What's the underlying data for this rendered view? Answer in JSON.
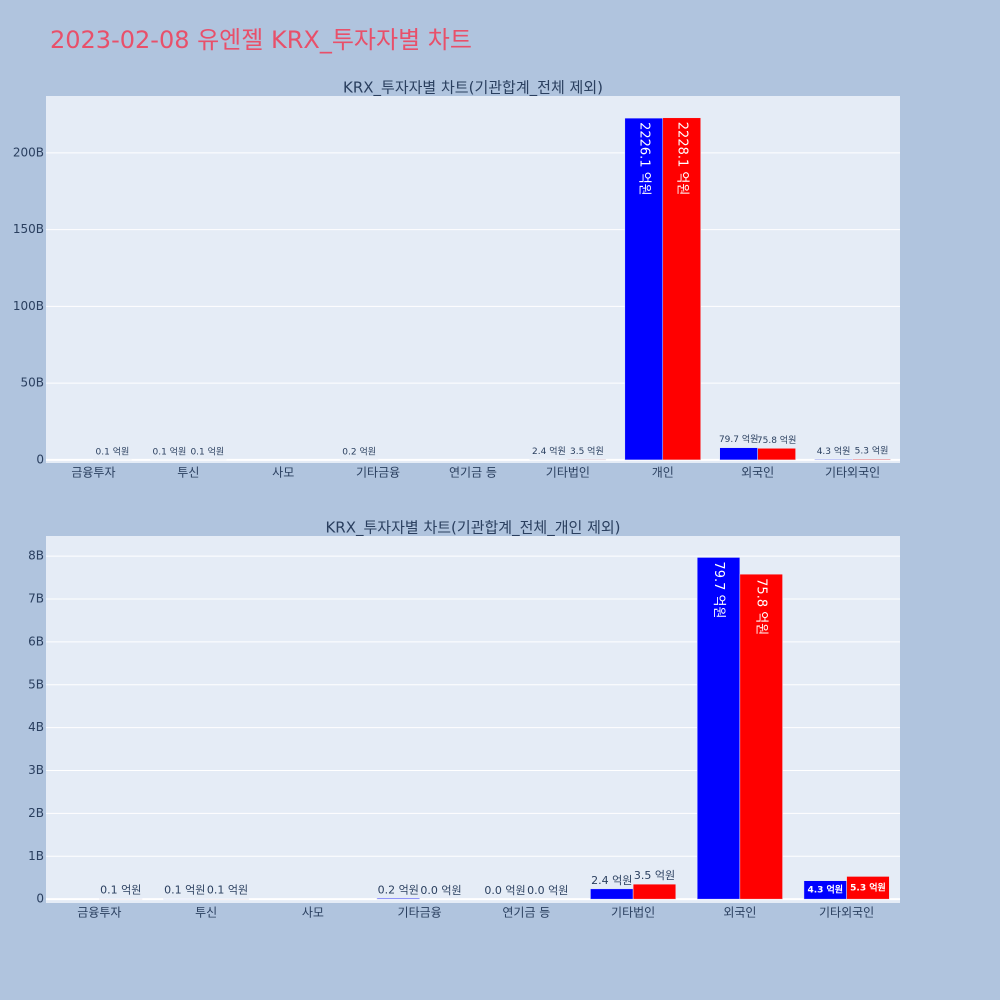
{
  "title": "2023-02-08 유엔젤 KRX_투자자별 차트",
  "chart_data": [
    {
      "type": "bar",
      "title": "KRX_투자자별 차트(기관합계_전체 제외)",
      "categories": [
        "금융투자",
        "투신",
        "사모",
        "기타금융",
        "연기금 등",
        "기타법인",
        "개인",
        "외국인",
        "기타외국인"
      ],
      "series": [
        {
          "color": "#0000ff",
          "values": [
            null,
            0.01,
            null,
            0.02,
            0.0,
            0.24,
            222.61,
            7.97,
            0.43
          ],
          "value_labels": [
            null,
            "0.1 억원",
            null,
            "0.2 억원",
            null,
            "2.4 억원",
            "2226.1 억원",
            "79.7 억원",
            "4.3 억원"
          ]
        },
        {
          "color": "#ff0000",
          "values": [
            0.01,
            0.01,
            null,
            0.0,
            0.0,
            0.35,
            222.81,
            7.58,
            0.53
          ],
          "value_labels": [
            "0.1 억원",
            "0.1 억원",
            null,
            null,
            null,
            "3.5 억원",
            "2228.1 억원",
            "75.8 억원",
            "5.3 억원"
          ]
        }
      ],
      "ylim": [
        -2,
        237
      ],
      "yticks": [
        0,
        {
          "value": 50,
          "label": "50B"
        },
        {
          "value": 100,
          "label": "100B"
        },
        {
          "value": 150,
          "label": "150B"
        },
        {
          "value": 200,
          "label": "200B"
        }
      ],
      "grid": true
    },
    {
      "type": "bar",
      "title": "KRX_투자자별 차트(기관합계_전체_개인 제외)",
      "categories": [
        "금융투자",
        "투신",
        "사모",
        "기타금융",
        "연기금 등",
        "기타법인",
        "외국인",
        "기타외국인"
      ],
      "series": [
        {
          "color": "#0000ff",
          "values": [
            null,
            0.01,
            null,
            0.02,
            0.0,
            0.24,
            7.97,
            0.43
          ],
          "value_labels": [
            null,
            "0.1 억원",
            null,
            "0.2 억원",
            "0.0 억원",
            "2.4 억원",
            "79.7 억원",
            "4.3 억원"
          ]
        },
        {
          "color": "#ff0000",
          "values": [
            0.01,
            0.01,
            null,
            0.0,
            0.0,
            0.35,
            7.58,
            0.53
          ],
          "value_labels": [
            "0.1 억원",
            "0.1 억원",
            null,
            "0.0 억원",
            "0.0 억원",
            "3.5 억원",
            "75.8 억원",
            "5.3 억원"
          ]
        }
      ],
      "ylim": [
        -0.09,
        8.47
      ],
      "yticks": [
        0,
        {
          "value": 1,
          "label": "1B"
        },
        {
          "value": 2,
          "label": "2B"
        },
        {
          "value": 3,
          "label": "3B"
        },
        {
          "value": 4,
          "label": "4B"
        },
        {
          "value": 5,
          "label": "5B"
        },
        {
          "value": 6,
          "label": "6B"
        },
        {
          "value": 7,
          "label": "7B"
        },
        {
          "value": 8,
          "label": "8B"
        }
      ],
      "grid": true
    }
  ]
}
